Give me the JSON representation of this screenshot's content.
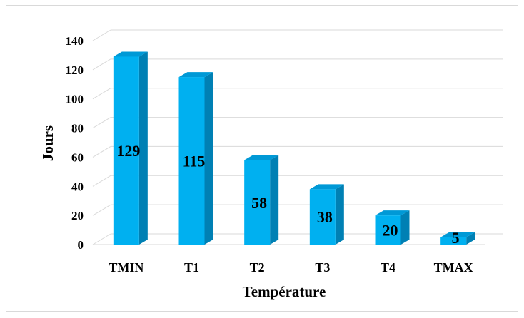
{
  "chart_data": {
    "type": "bar",
    "categories": [
      "TMIN",
      "T1",
      "T2",
      "T3",
      "T4",
      "TMAX"
    ],
    "values": [
      129,
      115,
      58,
      38,
      20,
      5
    ],
    "data_labels": [
      "129",
      "115",
      "58",
      "38",
      "20",
      "5"
    ],
    "xlabel": "Température",
    "ylabel": "Jours",
    "ylim": [
      0,
      140
    ],
    "yticks": [
      0,
      20,
      40,
      60,
      80,
      100,
      120,
      140
    ],
    "ytick_labels": [
      "0",
      "20",
      "40",
      "60",
      "80",
      "100",
      "120",
      "140"
    ],
    "grid": true,
    "legend": "none",
    "style": "3d-column",
    "colors": {
      "bar_front": "#00b0f0",
      "bar_side": "#0080b4",
      "bar_top": "#0099d6",
      "grid": "#d9d9d9",
      "frame": "#d9d9d9"
    }
  }
}
